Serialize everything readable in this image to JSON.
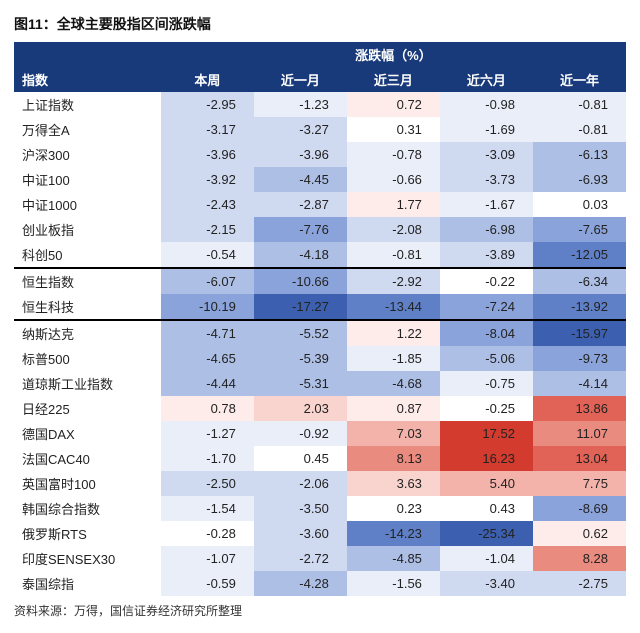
{
  "figure_title": "图11：全球主要股指区间涨跌幅",
  "header": {
    "index_label": "指数",
    "group_label": "涨跌幅（%）",
    "columns": [
      "本周",
      "近一月",
      "近三月",
      "近六月",
      "近一年"
    ]
  },
  "footer": "资料来源：万得，国信证券经济研究所整理",
  "heatmap": {
    "neg_colors": [
      "#ffffff",
      "#e9eef9",
      "#cfd9f0",
      "#aebfe6",
      "#8aa3da",
      "#5f80c7",
      "#3c5faf"
    ],
    "pos_colors": [
      "#ffffff",
      "#fdecea",
      "#f9d4cf",
      "#f3b3aa",
      "#ea8b80",
      "#e16357",
      "#d23b2e"
    ],
    "neg_thresholds": [
      0.5,
      2,
      4,
      7,
      11,
      15
    ],
    "pos_thresholds": [
      0.5,
      2,
      5,
      8,
      12,
      16
    ]
  },
  "groups": [
    {
      "sep_after": true,
      "rows": [
        {
          "name": "上证指数",
          "vals": [
            -2.95,
            -1.23,
            0.72,
            -0.98,
            -0.81
          ]
        },
        {
          "name": "万得全A",
          "vals": [
            -3.17,
            -3.27,
            0.31,
            -1.69,
            -0.81
          ]
        },
        {
          "name": "沪深300",
          "vals": [
            -3.96,
            -3.96,
            -0.78,
            -3.09,
            -6.13
          ]
        },
        {
          "name": "中证100",
          "vals": [
            -3.92,
            -4.45,
            -0.66,
            -3.73,
            -6.93
          ]
        },
        {
          "name": "中证1000",
          "vals": [
            -2.43,
            -2.87,
            1.77,
            -1.67,
            0.03
          ]
        },
        {
          "name": "创业板指",
          "vals": [
            -2.15,
            -7.76,
            -2.08,
            -6.98,
            -7.65
          ]
        },
        {
          "name": "科创50",
          "vals": [
            -0.54,
            -4.18,
            -0.81,
            -3.89,
            -12.05
          ]
        }
      ]
    },
    {
      "sep_after": true,
      "rows": [
        {
          "name": "恒生指数",
          "vals": [
            -6.07,
            -10.66,
            -2.92,
            -0.22,
            -6.34
          ]
        },
        {
          "name": "恒生科技",
          "vals": [
            -10.19,
            -17.27,
            -13.44,
            -7.24,
            -13.92
          ]
        }
      ]
    },
    {
      "sep_after": false,
      "rows": [
        {
          "name": "纳斯达克",
          "vals": [
            -4.71,
            -5.52,
            1.22,
            -8.04,
            -15.97
          ]
        },
        {
          "name": "标普500",
          "vals": [
            -4.65,
            -5.39,
            -1.85,
            -5.06,
            -9.73
          ]
        },
        {
          "name": "道琼斯工业指数",
          "vals": [
            -4.44,
            -5.31,
            -4.68,
            -0.75,
            -4.14
          ]
        },
        {
          "name": "日经225",
          "vals": [
            0.78,
            2.03,
            0.87,
            -0.25,
            13.86
          ]
        },
        {
          "name": "德国DAX",
          "vals": [
            -1.27,
            -0.92,
            7.03,
            17.52,
            11.07
          ]
        },
        {
          "name": "法国CAC40",
          "vals": [
            -1.7,
            0.45,
            8.13,
            16.23,
            13.04
          ]
        },
        {
          "name": "英国富时100",
          "vals": [
            -2.5,
            -2.06,
            3.63,
            5.4,
            7.75
          ]
        },
        {
          "name": "韩国综合指数",
          "vals": [
            -1.54,
            -3.5,
            0.23,
            0.43,
            -8.69
          ]
        },
        {
          "name": "俄罗斯RTS",
          "vals": [
            -0.28,
            -3.6,
            -14.23,
            -25.34,
            0.62
          ]
        },
        {
          "name": "印度SENSEX30",
          "vals": [
            -1.07,
            -2.72,
            -4.85,
            -1.04,
            8.28
          ]
        },
        {
          "name": "泰国综指",
          "vals": [
            -0.59,
            -4.28,
            -1.56,
            -3.4,
            -2.75
          ]
        }
      ]
    }
  ]
}
